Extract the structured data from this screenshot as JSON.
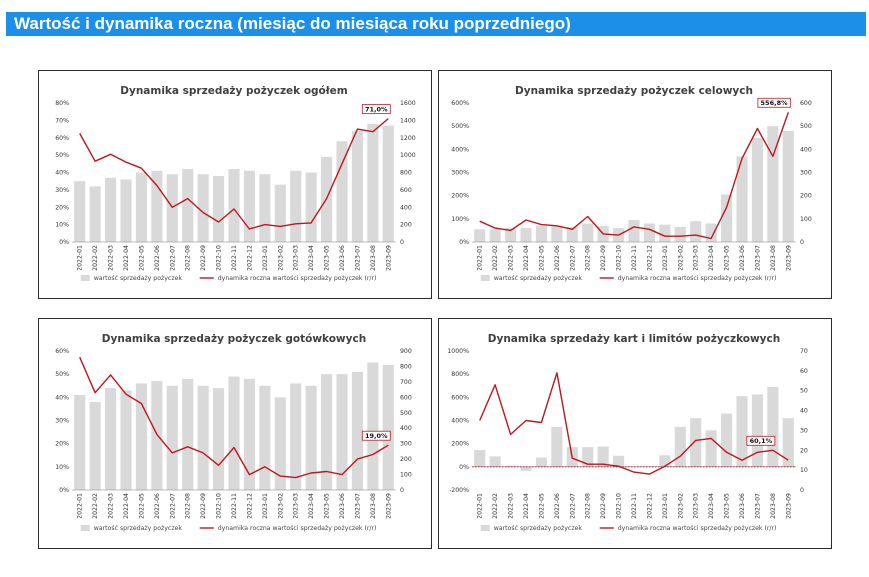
{
  "header": {
    "title": "Wartość i dynamika roczna (miesiąc do miesiąca roku poprzedniego)"
  },
  "colors": {
    "banner": "#1c8fe8",
    "bar": "#d9d9d9",
    "line": "#c0161d",
    "callout_border": "#c0161d"
  },
  "chart_data": [
    {
      "type": "bar",
      "title": "Dynamika sprzedaży pożyczek ogółem",
      "categories": [
        "2022-01",
        "2022-02",
        "2022-03",
        "2022-04",
        "2022-05",
        "2022-06",
        "2022-07",
        "2022-08",
        "2022-09",
        "2022-10",
        "2022-11",
        "2022-12",
        "2023-01",
        "2023-02",
        "2023-03",
        "2023-04",
        "2023-05",
        "2023-06",
        "2023-07",
        "2023-08",
        "2023-09"
      ],
      "left_axis": {
        "ticks": [
          "0%",
          "10%",
          "20%",
          "30%",
          "40%",
          "50%",
          "60%",
          "70%",
          "80%"
        ],
        "min": 0,
        "max": 80
      },
      "right_axis": {
        "ticks": [
          "0",
          "200",
          "400",
          "600",
          "800",
          "1000",
          "1200",
          "1400",
          "1600"
        ],
        "min": 0,
        "max": 1600
      },
      "series": [
        {
          "name": "wartość sprzedaży pożyczek",
          "type": "bar",
          "axis": "left",
          "values": [
            35,
            32,
            37,
            36,
            40,
            41,
            39,
            42,
            39,
            38,
            42,
            41,
            39,
            33,
            41,
            40,
            49,
            58,
            64,
            68,
            67
          ]
        },
        {
          "name": "dynamika roczna wartości sprzedaży pożyczek (r/r)",
          "type": "line",
          "axis": "right",
          "values": [
            1250,
            930,
            1010,
            920,
            850,
            650,
            400,
            500,
            340,
            230,
            380,
            150,
            200,
            180,
            210,
            220,
            500,
            900,
            1300,
            1270,
            1420
          ]
        }
      ],
      "callout": {
        "text": "71,0%",
        "index": 20
      },
      "legend": "bottom"
    },
    {
      "type": "bar",
      "title": "Dynamika sprzedaży pożyczek celowych",
      "categories": [
        "2022-01",
        "2022-02",
        "2022-03",
        "2022-04",
        "2022-05",
        "2022-06",
        "2022-07",
        "2022-08",
        "2022-09",
        "2022-10",
        "2022-11",
        "2022-12",
        "2023-01",
        "2023-02",
        "2023-03",
        "2023-04",
        "2023-05",
        "2023-06",
        "2023-07",
        "2023-08",
        "2023-09"
      ],
      "left_axis": {
        "ticks": [
          "0%",
          "100%",
          "200%",
          "300%",
          "400%",
          "500%",
          "600%"
        ],
        "min": 0,
        "max": 600
      },
      "right_axis": {
        "ticks": [
          "0",
          "100",
          "200",
          "300",
          "400",
          "500",
          "600"
        ],
        "min": 0,
        "max": 600
      },
      "series": [
        {
          "name": "wartość sprzedaży pożyczek",
          "type": "bar",
          "axis": "left",
          "values": [
            55,
            55,
            60,
            60,
            70,
            70,
            65,
            80,
            70,
            60,
            95,
            80,
            75,
            65,
            90,
            80,
            205,
            370,
            450,
            500,
            480
          ]
        },
        {
          "name": "dynamika roczna wartości sprzedaży pożyczek (r/r)",
          "type": "line",
          "axis": "right",
          "values": [
            90,
            60,
            50,
            95,
            75,
            70,
            55,
            110,
            35,
            30,
            65,
            55,
            25,
            25,
            30,
            15,
            150,
            360,
            490,
            370,
            560
          ]
        }
      ],
      "callout": {
        "text": "556,8%",
        "index": 20
      },
      "legend": "bottom"
    },
    {
      "type": "bar",
      "title": "Dynamika sprzedaży pożyczek gotówkowych",
      "categories": [
        "2022-01",
        "2022-02",
        "2022-03",
        "2022-04",
        "2022-05",
        "2022-06",
        "2022-07",
        "2022-08",
        "2022-09",
        "2022-10",
        "2022-11",
        "2022-12",
        "2023-01",
        "2023-02",
        "2023-03",
        "2023-04",
        "2023-05",
        "2023-06",
        "2023-07",
        "2023-08",
        "2023-09"
      ],
      "left_axis": {
        "ticks": [
          "0%",
          "10%",
          "20%",
          "30%",
          "40%",
          "50%",
          "60%"
        ],
        "min": 0,
        "max": 60
      },
      "right_axis": {
        "ticks": [
          "0",
          "100",
          "200",
          "300",
          "400",
          "500",
          "600",
          "700",
          "800",
          "900"
        ],
        "min": 0,
        "max": 900
      },
      "series": [
        {
          "name": "wartość sprzedaży pożyczek",
          "type": "bar",
          "axis": "left",
          "values": [
            41,
            38,
            44,
            43,
            46,
            47,
            45,
            48,
            45,
            44,
            49,
            48,
            45,
            40,
            46,
            45,
            50,
            50,
            51,
            55,
            54
          ]
        },
        {
          "name": "dynamika roczna wartości sprzedaży pożyczek (r/r)",
          "type": "line",
          "axis": "right",
          "values": [
            860,
            630,
            745,
            620,
            560,
            360,
            240,
            280,
            240,
            160,
            275,
            100,
            150,
            90,
            80,
            110,
            120,
            100,
            200,
            230,
            290
          ]
        }
      ],
      "callout": {
        "text": "19,0%",
        "index": 20
      },
      "legend": "bottom"
    },
    {
      "type": "bar",
      "title": "Dynamika sprzedaży kart i limitów pożyczkowych",
      "categories": [
        "2022-01",
        "2022-02",
        "2022-03",
        "2022-04",
        "2022-05",
        "2022-06",
        "2022-07",
        "2022-08",
        "2022-09",
        "2022-10",
        "2022-11",
        "2022-12",
        "2023-01",
        "2023-02",
        "2023-03",
        "2023-04",
        "2023-05",
        "2023-06",
        "2023-07",
        "2023-08",
        "2023-09"
      ],
      "left_axis": {
        "ticks": [
          "-200%",
          "0%",
          "200%",
          "400%",
          "600%",
          "800%",
          "1000%"
        ],
        "min": -200,
        "max": 1000
      },
      "right_axis": {
        "ticks": [
          "0",
          "10",
          "20",
          "30",
          "40",
          "50",
          "60",
          "70"
        ],
        "min": 0,
        "max": 70
      },
      "series": [
        {
          "name": "wartość sprzedaży pożyczek",
          "type": "bar",
          "axis": "left",
          "values": [
            145,
            90,
            10,
            -35,
            80,
            345,
            170,
            170,
            175,
            95,
            5,
            5,
            100,
            345,
            420,
            315,
            460,
            610,
            625,
            690,
            420
          ]
        },
        {
          "name": "dynamika roczna wartości sprzedaży pożyczek (r/r)",
          "type": "line",
          "axis": "right",
          "values": [
            35,
            53,
            28,
            35,
            34,
            59,
            16,
            13,
            13,
            12,
            9,
            8,
            12,
            17,
            25,
            26,
            19,
            15,
            19,
            20,
            15
          ]
        }
      ],
      "callout": {
        "text": "60,1%",
        "index": 19
      },
      "reference_line": {
        "axis": "left",
        "value": 0,
        "style": "dotted"
      },
      "legend": "bottom"
    }
  ]
}
